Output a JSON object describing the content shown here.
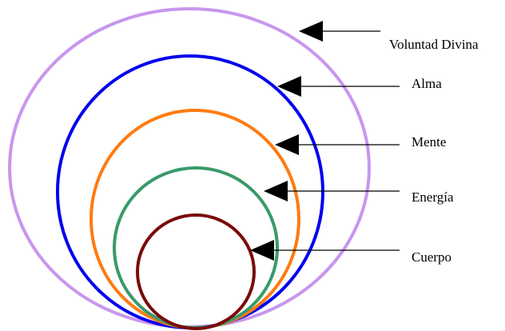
{
  "layers": [
    {
      "label": "Voluntad Divina",
      "color": "#c896ee"
    },
    {
      "label": "Alma",
      "color": "#0000ee"
    },
    {
      "label": "Mente",
      "color": "#ff7a10"
    },
    {
      "label": "Energía",
      "color": "#3a9a6a"
    },
    {
      "label": "Cuerpo",
      "color": "#7a0a0a"
    }
  ],
  "arrow_color": "#000000"
}
